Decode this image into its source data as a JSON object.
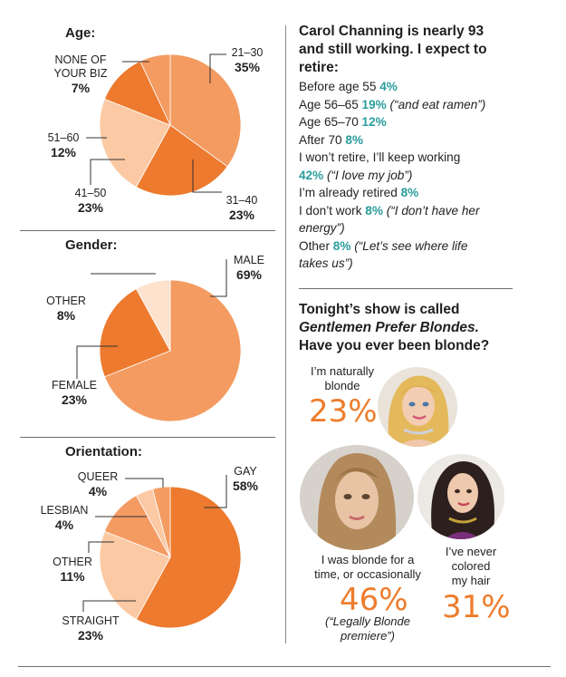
{
  "colors": {
    "darkOrange": "#ed7a2e",
    "midOrange": "#f49b62",
    "lightOrange": "#fbc9a3",
    "paleOrange": "#fde2cd",
    "teal": "#2a9d9c",
    "bigPct": "#ed7d2d"
  },
  "chart_data": [
    {
      "type": "pie",
      "title": "Age:",
      "slices": [
        {
          "label": "21–30",
          "value": 35,
          "display": "35%"
        },
        {
          "label": "31–40",
          "value": 23,
          "display": "23%"
        },
        {
          "label": "41–50",
          "value": 23,
          "display": "23%"
        },
        {
          "label": "51–60",
          "value": 12,
          "display": "12%"
        },
        {
          "label": "NONE OF YOUR BIZ",
          "label_line1": "NONE OF",
          "label_line2": "YOUR BIZ",
          "value": 7,
          "display": "7%"
        }
      ]
    },
    {
      "type": "pie",
      "title": "Gender:",
      "slices": [
        {
          "label": "MALE",
          "value": 69,
          "display": "69%"
        },
        {
          "label": "FEMALE",
          "value": 23,
          "display": "23%"
        },
        {
          "label": "OTHER",
          "value": 8,
          "display": "8%"
        }
      ]
    },
    {
      "type": "pie",
      "title": "Orientation:",
      "slices": [
        {
          "label": "GAY",
          "value": 58,
          "display": "58%"
        },
        {
          "label": "STRAIGHT",
          "value": 23,
          "display": "23%"
        },
        {
          "label": "OTHER",
          "value": 11,
          "display": "11%"
        },
        {
          "label": "LESBIAN",
          "value": 4,
          "display": "4%"
        },
        {
          "label": "QUEER",
          "value": 4,
          "display": "4%"
        }
      ]
    }
  ],
  "retire": {
    "title_l1": "Carol Channing is nearly 93",
    "title_l2": "and still working. I expect to",
    "title_l3": "retire:",
    "o1": {
      "text": "Before age 55",
      "pct": "4%"
    },
    "o2": {
      "text": "Age 56–65",
      "pct": "19%",
      "note": "(“and eat ramen”)"
    },
    "o3": {
      "text": "Age 65–70",
      "pct": "12%"
    },
    "o4": {
      "text": "After 70",
      "pct": "8%"
    },
    "o5": {
      "text": "I won’t retire, I’ll keep working",
      "pct": "42%",
      "note": "(“I love my job”)"
    },
    "o6": {
      "text": "I’m already retired",
      "pct": "8%"
    },
    "o7": {
      "text": "I don’t work",
      "pct": "8%",
      "note_l1": "(“I don’t have her",
      "note_l2": "energy”)"
    },
    "o8": {
      "text": "Other",
      "pct": "8%",
      "note_l1": "(“Let’s see where life",
      "note_l2": "takes us”)"
    }
  },
  "blonde": {
    "title_l1": "Tonight’s show is called",
    "title_l2": "Gentlemen Prefer Blondes.",
    "title_l3": "Have you ever been blonde?",
    "natural": {
      "l1": "I’m naturally",
      "l2": "blonde",
      "pct": "23%"
    },
    "sometime": {
      "l1": "I was blonde for a",
      "l2": "time, or occasionally",
      "pct": "46%",
      "note_l1": "(“Legally Blonde",
      "note_l2": "premiere”)"
    },
    "never": {
      "l1": "I’ve never",
      "l2": "colored",
      "l3": "my hair",
      "pct": "31%"
    }
  }
}
